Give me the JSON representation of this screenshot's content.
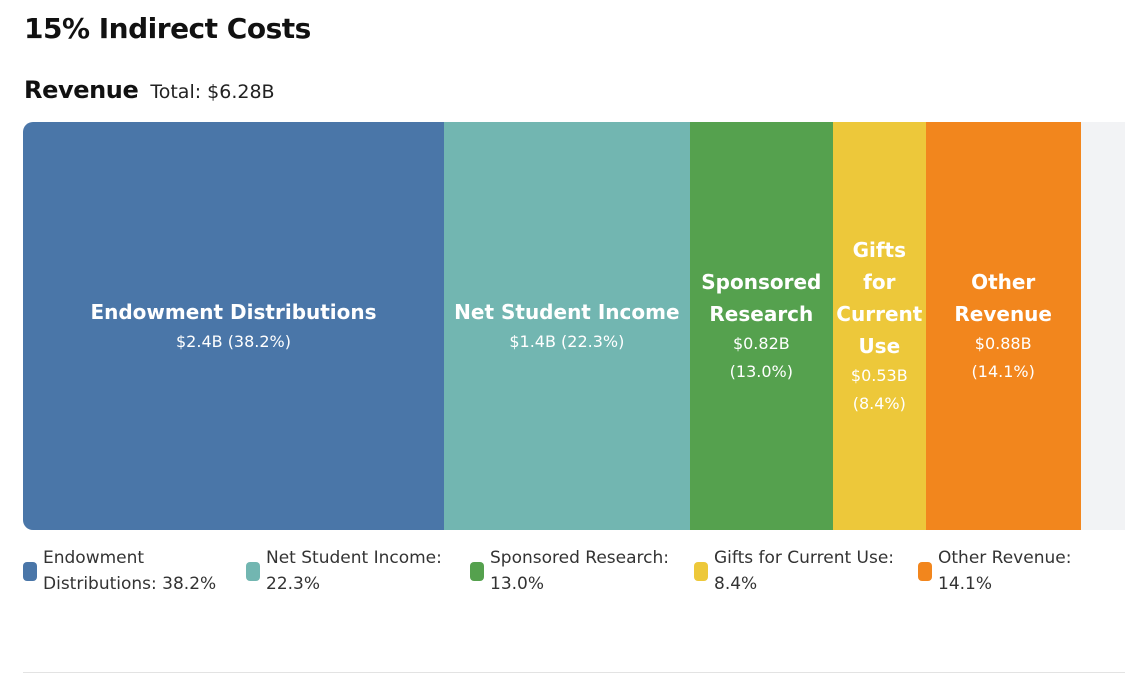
{
  "header": {
    "title": "15% Indirect Costs"
  },
  "revenue": {
    "section_title": "Revenue",
    "total_text": "Total: $6.28B"
  },
  "chart_data": {
    "type": "bar",
    "orientation": "horizontal-stacked",
    "title": "Revenue",
    "total": "Total: $6.28B",
    "categories": [
      "Endowment Distributions",
      "Net Student Income",
      "Sponsored Research",
      "Gifts for Current Use",
      "Other Revenue"
    ],
    "percent": [
      38.2,
      22.3,
      13.0,
      8.4,
      14.1
    ],
    "segments": [
      {
        "label": "Endowment Distributions",
        "value_text": "$2.4B (38.2%)",
        "amount_billion": 2.4,
        "percent": 38.2,
        "color": "#4a76a8"
      },
      {
        "label": "Net Student Income",
        "value_text": "$1.4B (22.3%)",
        "amount_billion": 1.4,
        "percent": 22.3,
        "color": "#72b6b1"
      },
      {
        "label": "Sponsored Research",
        "value_text": "$0.82B (13.0%)",
        "amount_billion": 0.82,
        "percent": 13.0,
        "color": "#55a14e"
      },
      {
        "label": "Gifts for Current Use",
        "value_text": "$0.53B (8.4%)",
        "amount_billion": 0.53,
        "percent": 8.4,
        "color": "#edc83a"
      },
      {
        "label": "Other Revenue",
        "value_text": "$0.88B (14.1%)",
        "amount_billion": 0.88,
        "percent": 14.1,
        "color": "#f2861d"
      }
    ],
    "legend": [
      {
        "text": "Endowment Distributions: 38.2%",
        "color": "#4a76a8"
      },
      {
        "text": "Net Student Income: 22.3%",
        "color": "#72b6b1"
      },
      {
        "text": "Sponsored Research: 13.0%",
        "color": "#55a14e"
      },
      {
        "text": "Gifts for Current Use: 8.4%",
        "color": "#edc83a"
      },
      {
        "text": "Other Revenue: 14.1%",
        "color": "#f2861d"
      }
    ],
    "legend_position": "bottom",
    "track_color": "#f2f3f5"
  }
}
